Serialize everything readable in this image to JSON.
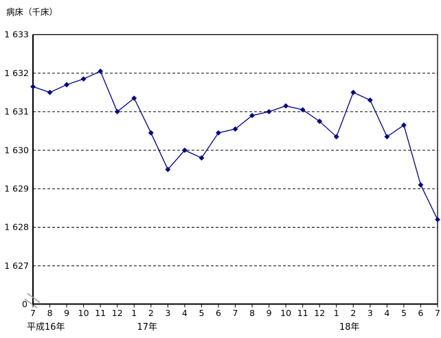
{
  "chart_data": {
    "type": "line",
    "title": "病床（千床）",
    "line_color": "#000080",
    "marker": "diamond",
    "grid": "horizontal-dashed",
    "axis_break": true,
    "x_tick_labels": [
      "7",
      "8",
      "9",
      "10",
      "11",
      "12",
      "1",
      "2",
      "3",
      "4",
      "5",
      "6",
      "7",
      "8",
      "9",
      "10",
      "11",
      "12",
      "1",
      "2",
      "3",
      "4",
      "5",
      "6",
      "7"
    ],
    "year_row": [
      {
        "label": "平成16年",
        "anchor_index": 0,
        "align": "left"
      },
      {
        "label": "17年",
        "anchor_index": 6,
        "align": "center"
      },
      {
        "label": "18年",
        "anchor_index": 18,
        "align": "center"
      }
    ],
    "values": [
      1631.65,
      1631.5,
      1631.7,
      1631.85,
      1632.05,
      1631.0,
      1631.35,
      1630.45,
      1629.5,
      1630.0,
      1629.8,
      1630.45,
      1630.55,
      1630.9,
      1631.0,
      1631.15,
      1631.05,
      1630.75,
      1630.35,
      1631.5,
      1631.3,
      1630.35,
      1630.65,
      1629.1,
      1628.2
    ],
    "y_ticks": [
      {
        "value": 1633,
        "label": "1 633"
      },
      {
        "value": 1632,
        "label": "1 632"
      },
      {
        "value": 1631,
        "label": "1 631"
      },
      {
        "value": 1630,
        "label": "1 630"
      },
      {
        "value": 1629,
        "label": "1 629"
      },
      {
        "value": 1628,
        "label": "1 628"
      },
      {
        "value": 1627,
        "label": "1 627"
      }
    ],
    "y_origin_label": "0",
    "ylim_shown": [
      1627,
      1633
    ]
  }
}
